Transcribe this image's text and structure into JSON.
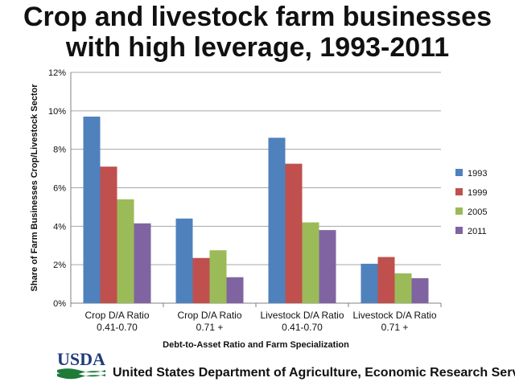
{
  "chart_data": {
    "type": "bar",
    "title": "Crop and livestock farm businesses with high leverage, 1993-2011",
    "xlabel": "Debt-to-Asset Ratio and Farm Specialization",
    "ylabel": "Share of Farm Businesses Crop/Livestock Sector",
    "ylim": [
      0,
      12
    ],
    "yticks": [
      "0%",
      "2%",
      "4%",
      "6%",
      "8%",
      "10%",
      "12%"
    ],
    "y_unit": "%",
    "grid": true,
    "legend_position": "right",
    "categories": [
      {
        "line1": "Crop D/A Ratio",
        "line2": "0.41-0.70"
      },
      {
        "line1": "Crop D/A Ratio",
        "line2": "0.71 +"
      },
      {
        "line1": "Livestock D/A Ratio",
        "line2": "0.41-0.70"
      },
      {
        "line1": "Livestock D/A Ratio",
        "line2": "0.71 +"
      }
    ],
    "series": [
      {
        "name": "1993",
        "color": "#4f81bd",
        "values": [
          9.7,
          4.4,
          8.6,
          2.05
        ]
      },
      {
        "name": "1999",
        "color": "#c0504d",
        "values": [
          7.1,
          2.35,
          7.25,
          2.4
        ]
      },
      {
        "name": "2005",
        "color": "#9bbb59",
        "values": [
          5.4,
          2.75,
          4.2,
          1.55
        ]
      },
      {
        "name": "2011",
        "color": "#8064a2",
        "values": [
          4.15,
          1.35,
          3.8,
          1.3
        ]
      }
    ]
  },
  "footer": {
    "logo_text": "USDA",
    "agency": "United States Department of Agriculture, Economic Research Service"
  }
}
